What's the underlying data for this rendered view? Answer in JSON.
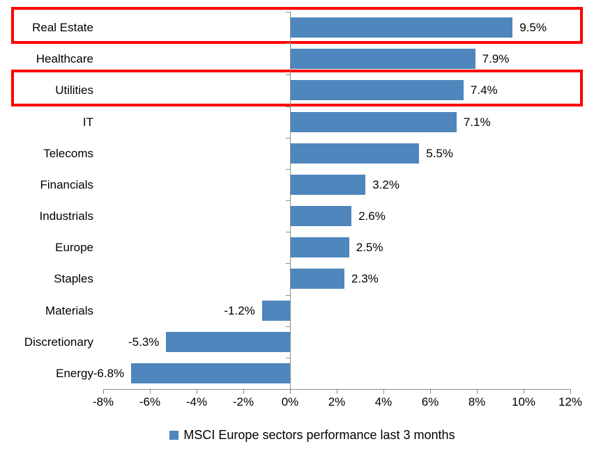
{
  "chart_data": {
    "type": "bar",
    "orientation": "horizontal",
    "categories": [
      "Real Estate",
      "Healthcare",
      "Utilities",
      "IT",
      "Telecoms",
      "Financials",
      "Industrials",
      "Europe",
      "Staples",
      "Materials",
      "Discretionary",
      "Energy"
    ],
    "values": [
      9.5,
      7.9,
      7.4,
      7.1,
      5.5,
      3.2,
      2.6,
      2.5,
      2.3,
      -1.2,
      -5.3,
      -6.8
    ],
    "value_labels": [
      "9.5%",
      "7.9%",
      "7.4%",
      "7.1%",
      "5.5%",
      "3.2%",
      "2.6%",
      "2.5%",
      "2.3%",
      "-1.2%",
      "-5.3%",
      "-6.8%"
    ],
    "x_tick_values": [
      -8,
      -6,
      -4,
      -2,
      0,
      2,
      4,
      6,
      8,
      10,
      12
    ],
    "x_tick_labels": [
      "-8%",
      "-6%",
      "-4%",
      "-2%",
      "0%",
      "2%",
      "4%",
      "6%",
      "8%",
      "10%",
      "12%"
    ],
    "xlim": [
      -8,
      12
    ],
    "grid": false,
    "legend": {
      "label": "MSCI Europe sectors performance last 3 months",
      "position": "bottom"
    },
    "highlighted_categories": [
      "Real Estate",
      "Utilities"
    ],
    "colors": {
      "bar": "#4E86BD",
      "axis": "#8A8A8A",
      "text": "#000000",
      "highlight_box": "#FF0000",
      "background": "#FFFFFF"
    }
  }
}
